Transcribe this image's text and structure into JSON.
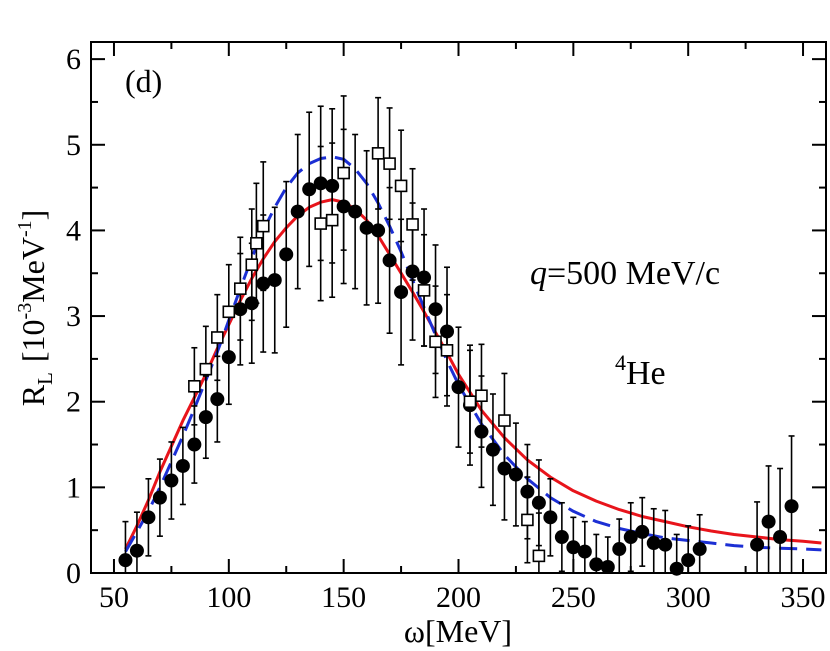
{
  "chart_data": {
    "type": "scatter",
    "panel_label": "(d)",
    "annotation_q_symbol": "q",
    "annotation_q_rest": "=500 MeV/c",
    "annotation_nucleus_mass": "4",
    "annotation_nucleus": "He",
    "xlabel": {
      "symbol": "ω",
      "unit": "[MeV]"
    },
    "ylabel": {
      "main": "R",
      "sub": "L",
      "open": "[10",
      "exp1": "-3",
      "unit": "MeV",
      "exp2": "-1",
      "close": "]"
    },
    "xlim": [
      40,
      360
    ],
    "ylim": [
      0,
      6.2
    ],
    "xticks": [
      50,
      100,
      150,
      200,
      250,
      300,
      350
    ],
    "yticks": [
      0,
      1,
      2,
      3,
      4,
      5,
      6
    ],
    "colors": {
      "solid_line": "#e8141b",
      "dashed_line": "#1c2fd4",
      "markers": "#000000"
    },
    "series": [
      {
        "name": "filled circles",
        "marker": "filled-circle",
        "points": [
          [
            55,
            0.15,
            0.45
          ],
          [
            60,
            0.26,
            0.45
          ],
          [
            65,
            0.65,
            0.45
          ],
          [
            70,
            0.88,
            0.45
          ],
          [
            75,
            1.08,
            0.45
          ],
          [
            80,
            1.25,
            0.45
          ],
          [
            85,
            1.5,
            0.45
          ],
          [
            90,
            1.82,
            0.48
          ],
          [
            95,
            2.03,
            0.5
          ],
          [
            100,
            2.52,
            0.55
          ],
          [
            105,
            3.08,
            0.65
          ],
          [
            110,
            3.15,
            0.7
          ],
          [
            115,
            3.38,
            0.8
          ],
          [
            120,
            3.42,
            0.85
          ],
          [
            125,
            3.72,
            0.85
          ],
          [
            130,
            4.22,
            0.9
          ],
          [
            135,
            4.48,
            0.9
          ],
          [
            140,
            4.55,
            0.9
          ],
          [
            145,
            4.52,
            0.9
          ],
          [
            150,
            4.28,
            0.9
          ],
          [
            155,
            4.22,
            0.9
          ],
          [
            160,
            4.03,
            0.9
          ],
          [
            165,
            4.0,
            0.85
          ],
          [
            170,
            3.65,
            0.85
          ],
          [
            175,
            3.28,
            0.85
          ],
          [
            180,
            3.52,
            0.8
          ],
          [
            185,
            3.45,
            0.8
          ],
          [
            190,
            3.08,
            0.75
          ],
          [
            195,
            2.82,
            0.75
          ],
          [
            200,
            2.17,
            0.7
          ],
          [
            205,
            1.96,
            0.7
          ],
          [
            210,
            1.65,
            0.65
          ],
          [
            215,
            1.44,
            0.65
          ],
          [
            220,
            1.22,
            0.6
          ],
          [
            225,
            1.15,
            0.6
          ],
          [
            230,
            0.95,
            0.55
          ],
          [
            235,
            0.82,
            0.5
          ],
          [
            240,
            0.65,
            0.45
          ],
          [
            245,
            0.42,
            0.4
          ],
          [
            250,
            0.3,
            0.35
          ],
          [
            255,
            0.25,
            0.35
          ],
          [
            260,
            0.1,
            0.35
          ],
          [
            265,
            0.07,
            0.35
          ],
          [
            270,
            0.28,
            0.35
          ],
          [
            275,
            0.42,
            0.4
          ],
          [
            280,
            0.48,
            0.4
          ],
          [
            285,
            0.35,
            0.4
          ],
          [
            290,
            0.33,
            0.4
          ],
          [
            295,
            0.05,
            0.4
          ],
          [
            300,
            0.15,
            0.4
          ],
          [
            305,
            0.28,
            0.4
          ],
          [
            330,
            0.33,
            0.5
          ],
          [
            335,
            0.6,
            0.65
          ],
          [
            340,
            0.42,
            0.8
          ],
          [
            345,
            0.78,
            0.82
          ]
        ]
      },
      {
        "name": "open squares",
        "marker": "open-square",
        "points": [
          [
            85,
            2.18,
            0.45
          ],
          [
            90,
            2.38,
            0.5
          ],
          [
            95,
            2.75,
            0.5
          ],
          [
            100,
            3.05,
            0.55
          ],
          [
            105,
            3.32,
            0.6
          ],
          [
            110,
            3.6,
            0.65
          ],
          [
            112,
            3.85,
            0.7
          ],
          [
            115,
            4.05,
            0.75
          ],
          [
            140,
            4.08,
            0.9
          ],
          [
            145,
            4.12,
            0.9
          ],
          [
            150,
            4.67,
            0.9
          ],
          [
            165,
            4.9,
            0.65
          ],
          [
            170,
            4.78,
            0.65
          ],
          [
            175,
            4.52,
            0.65
          ],
          [
            180,
            4.07,
            0.65
          ],
          [
            185,
            3.3,
            0.65
          ],
          [
            190,
            2.7,
            0.65
          ],
          [
            195,
            2.6,
            0.65
          ],
          [
            205,
            2.0,
            0.6
          ],
          [
            210,
            2.07,
            0.6
          ],
          [
            220,
            1.78,
            0.55
          ],
          [
            230,
            0.62,
            0.5
          ],
          [
            235,
            0.2,
            0.5
          ]
        ]
      }
    ],
    "curves": [
      {
        "name": "solid red curve",
        "style": "solid",
        "points": [
          [
            55,
            0.28
          ],
          [
            60,
            0.55
          ],
          [
            65,
            0.85
          ],
          [
            70,
            1.18
          ],
          [
            75,
            1.48
          ],
          [
            80,
            1.78
          ],
          [
            85,
            2.05
          ],
          [
            90,
            2.32
          ],
          [
            95,
            2.62
          ],
          [
            100,
            2.9
          ],
          [
            105,
            3.18
          ],
          [
            110,
            3.44
          ],
          [
            115,
            3.67
          ],
          [
            120,
            3.87
          ],
          [
            125,
            4.03
          ],
          [
            130,
            4.17
          ],
          [
            135,
            4.27
          ],
          [
            140,
            4.33
          ],
          [
            145,
            4.36
          ],
          [
            150,
            4.33
          ],
          [
            155,
            4.25
          ],
          [
            160,
            4.12
          ],
          [
            165,
            3.94
          ],
          [
            170,
            3.72
          ],
          [
            175,
            3.5
          ],
          [
            180,
            3.28
          ],
          [
            185,
            3.05
          ],
          [
            190,
            2.81
          ],
          [
            195,
            2.57
          ],
          [
            200,
            2.32
          ],
          [
            210,
            1.9
          ],
          [
            220,
            1.58
          ],
          [
            230,
            1.32
          ],
          [
            240,
            1.12
          ],
          [
            250,
            0.96
          ],
          [
            260,
            0.84
          ],
          [
            270,
            0.74
          ],
          [
            280,
            0.66
          ],
          [
            290,
            0.6
          ],
          [
            300,
            0.54
          ],
          [
            310,
            0.49
          ],
          [
            320,
            0.45
          ],
          [
            330,
            0.42
          ],
          [
            340,
            0.39
          ],
          [
            350,
            0.37
          ],
          [
            358,
            0.35
          ]
        ]
      },
      {
        "name": "dashed blue curve",
        "style": "dashed",
        "points": [
          [
            55,
            0.25
          ],
          [
            60,
            0.48
          ],
          [
            65,
            0.72
          ],
          [
            70,
            1.0
          ],
          [
            75,
            1.3
          ],
          [
            80,
            1.6
          ],
          [
            85,
            1.92
          ],
          [
            90,
            2.25
          ],
          [
            95,
            2.58
          ],
          [
            100,
            2.95
          ],
          [
            105,
            3.32
          ],
          [
            110,
            3.68
          ],
          [
            115,
            4.0
          ],
          [
            120,
            4.27
          ],
          [
            125,
            4.5
          ],
          [
            130,
            4.67
          ],
          [
            135,
            4.78
          ],
          [
            140,
            4.84
          ],
          [
            145,
            4.86
          ],
          [
            150,
            4.83
          ],
          [
            155,
            4.72
          ],
          [
            160,
            4.55
          ],
          [
            165,
            4.32
          ],
          [
            170,
            4.05
          ],
          [
            175,
            3.75
          ],
          [
            180,
            3.42
          ],
          [
            185,
            3.1
          ],
          [
            190,
            2.78
          ],
          [
            195,
            2.48
          ],
          [
            200,
            2.2
          ],
          [
            210,
            1.74
          ],
          [
            220,
            1.38
          ],
          [
            230,
            1.1
          ],
          [
            240,
            0.88
          ],
          [
            250,
            0.72
          ],
          [
            260,
            0.6
          ],
          [
            270,
            0.52
          ],
          [
            280,
            0.46
          ],
          [
            290,
            0.41
          ],
          [
            300,
            0.38
          ],
          [
            310,
            0.35
          ],
          [
            320,
            0.32
          ],
          [
            330,
            0.3
          ],
          [
            340,
            0.29
          ],
          [
            350,
            0.28
          ],
          [
            358,
            0.27
          ]
        ]
      }
    ]
  }
}
